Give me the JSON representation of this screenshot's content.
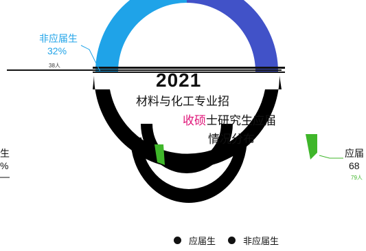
{
  "chart_data": {
    "type": "pie",
    "title_year": "2021",
    "title_line1": "材料与化工专业招",
    "title_line2_hl": "收硕",
    "title_line2_rest": "士研究生应届",
    "title_line3": "情况分布",
    "slices": [
      {
        "name": "应届生",
        "percent_label": "68%",
        "count_label": "79人",
        "value": 79,
        "color": "#3fb62a"
      },
      {
        "name": "非应届生",
        "percent_label": "32%",
        "count_label": "38人",
        "value": 38,
        "color": "#1fa3e8"
      }
    ],
    "left_label": {
      "name": "生",
      "percent": "%"
    },
    "right_label": {
      "name": "应届",
      "percent": "68"
    },
    "legend": [
      "应届生",
      "非应届生"
    ]
  },
  "colors": {
    "arc_left": "#1fa3e8",
    "arc_right": "#4152c8",
    "ring_dark": "#000000",
    "green": "#3fb62a",
    "highlight": "#e0177a"
  }
}
